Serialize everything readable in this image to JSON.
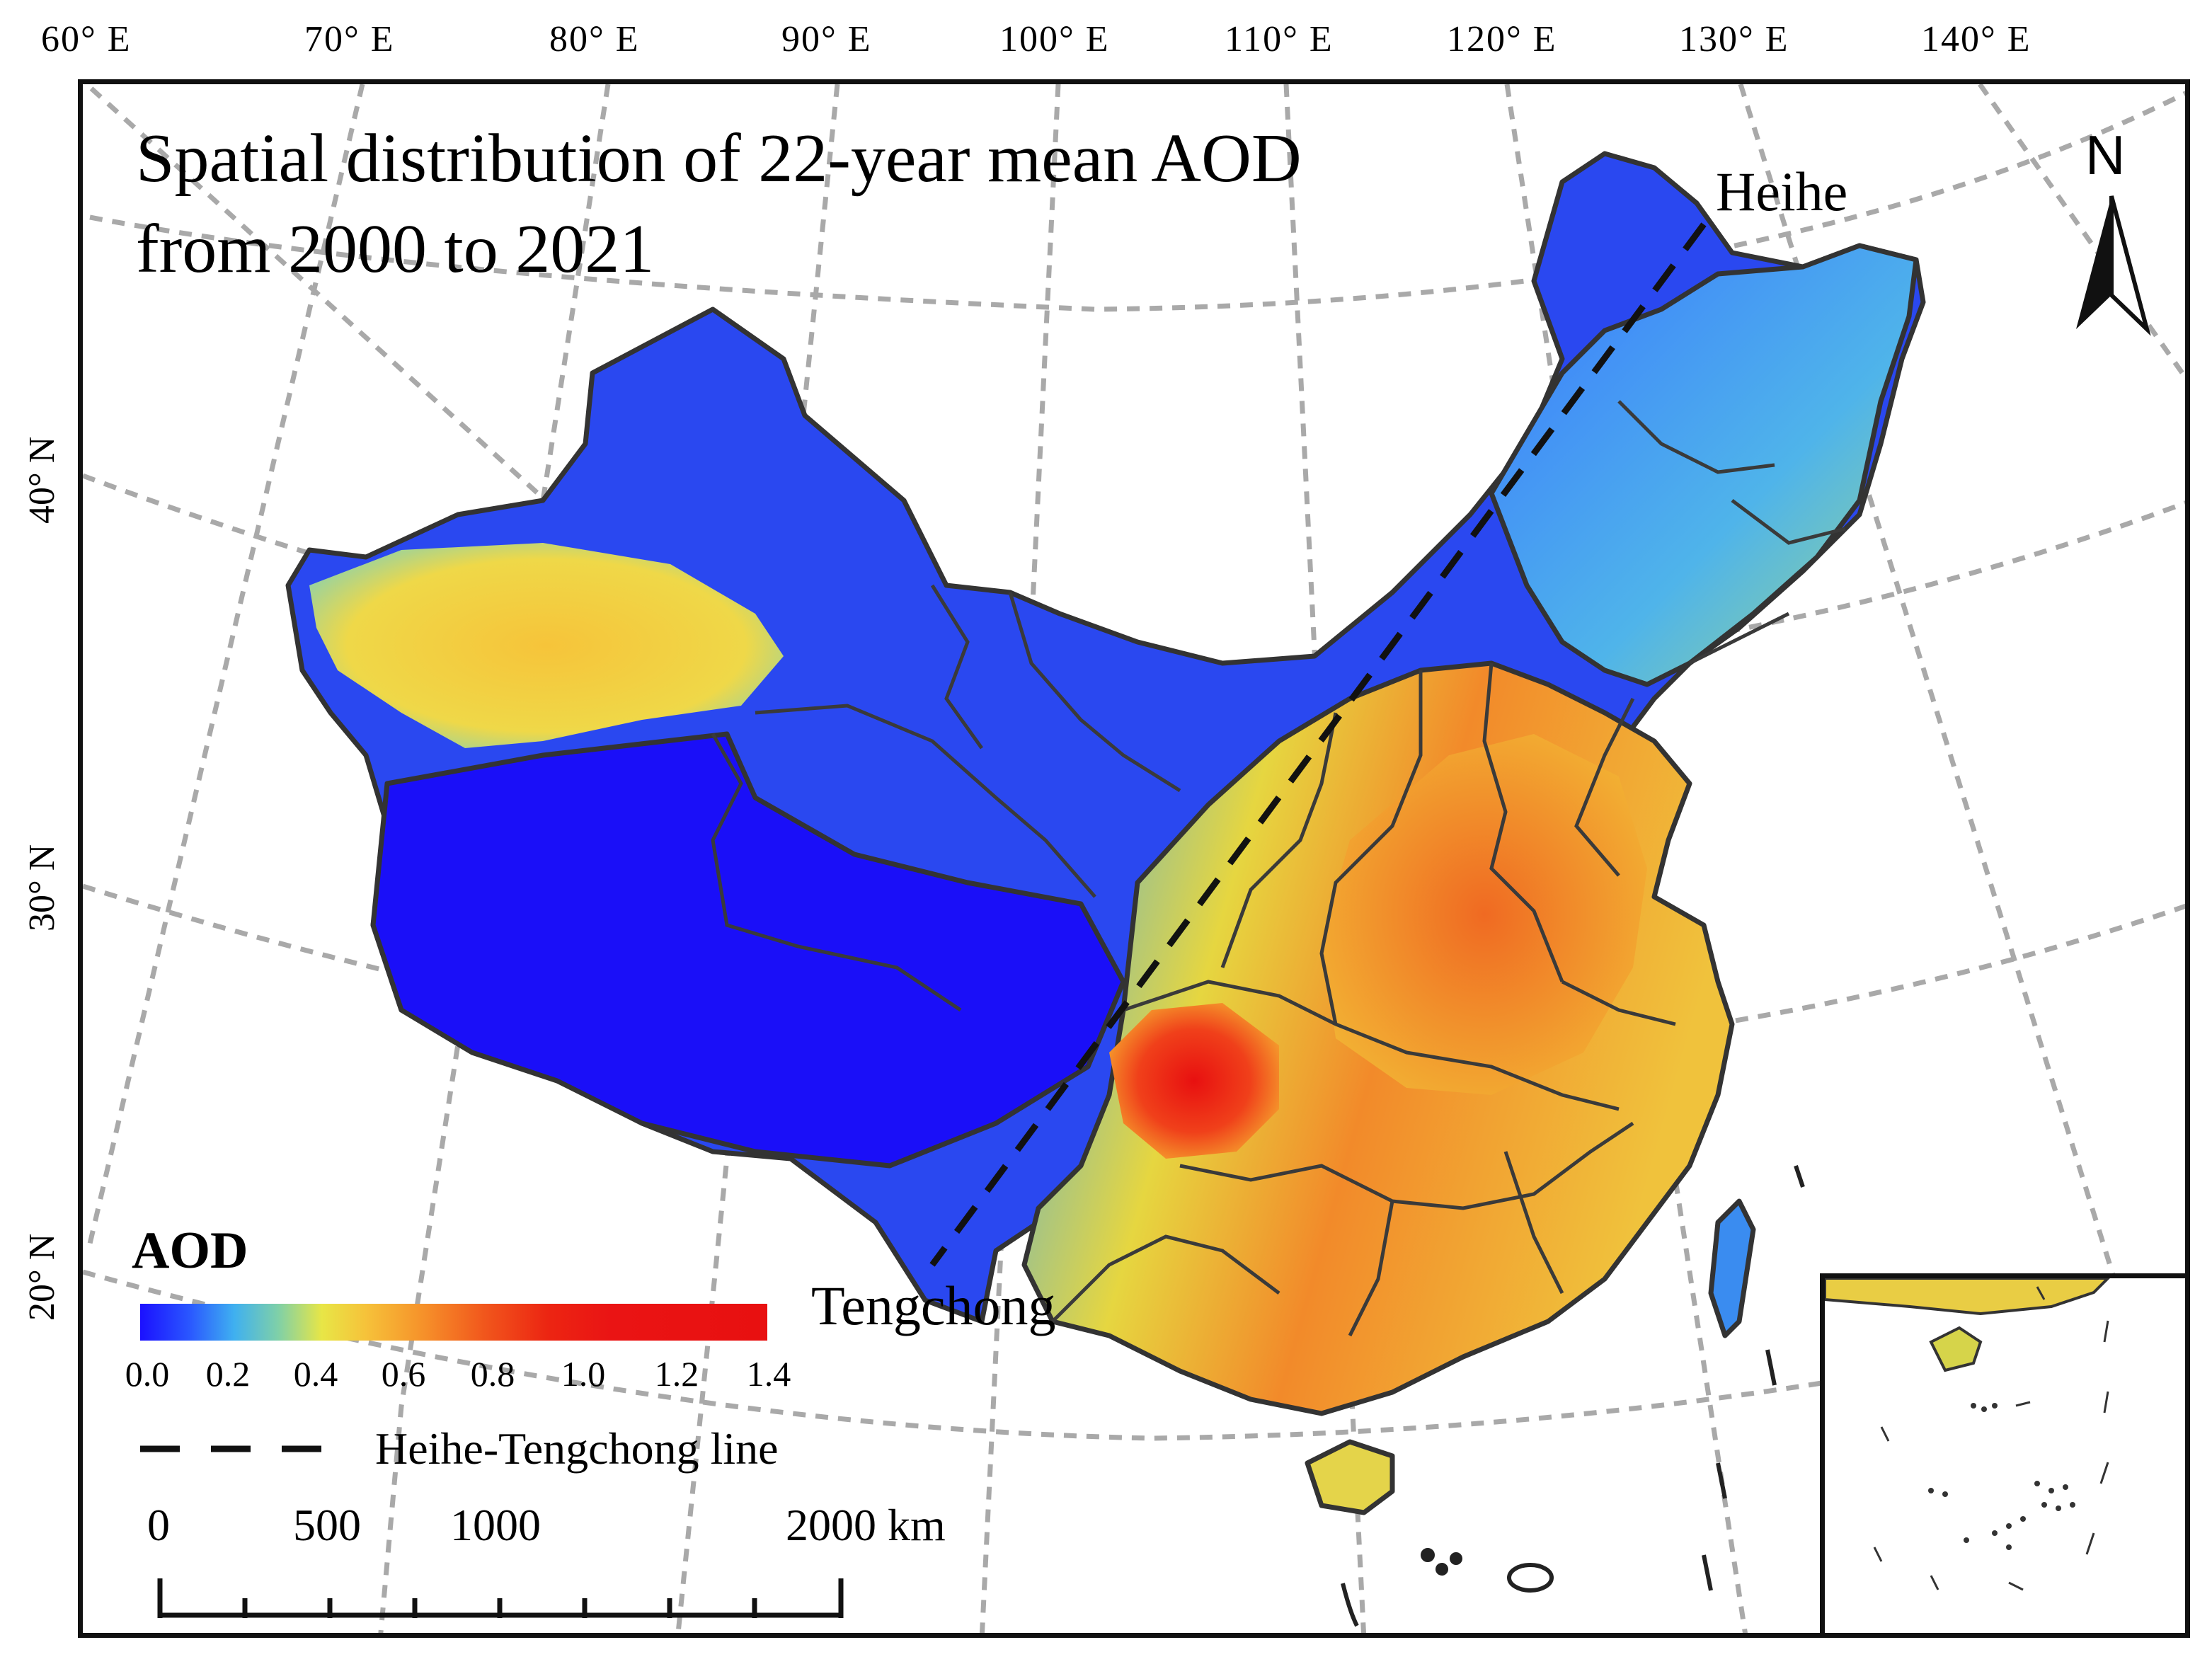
{
  "map": {
    "title_line1": "Spatial distribution of 22-year mean AOD",
    "title_line2": "from 2000 to 2021",
    "longitude_labels": [
      "60° E",
      "70° E",
      "80° E",
      "90° E",
      "100° E",
      "110° E",
      "120° E",
      "130° E",
      "140° E"
    ],
    "latitude_labels": [
      "40° N",
      "30° N",
      "20° N"
    ],
    "places": {
      "north": "Heihe",
      "south": "Tengchong"
    },
    "north_arrow_label": "N"
  },
  "legend": {
    "title": "AOD",
    "ticks": [
      "0.0",
      "0.2",
      "0.4",
      "0.6",
      "0.8",
      "1.0",
      "1.2",
      "1.4"
    ],
    "colors": [
      "#1b10ff",
      "#3fb0f0",
      "#e8e646",
      "#f6922a",
      "#ec2512",
      "#e81010"
    ],
    "line_label": "Heihe-Tengchong line"
  },
  "scale_bar": {
    "labels": [
      "0",
      "500",
      "1000",
      "2000 km"
    ]
  }
}
